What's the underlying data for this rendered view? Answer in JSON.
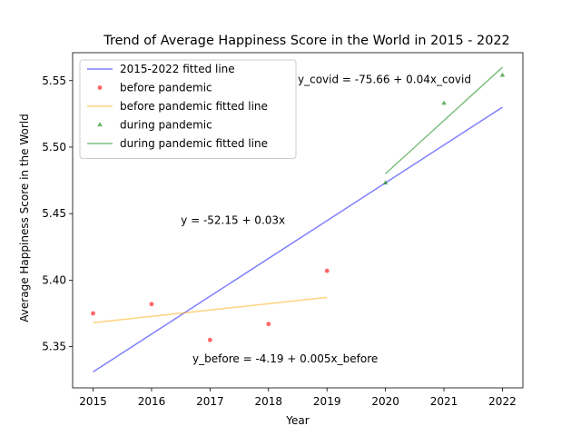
{
  "chart_data": {
    "type": "scatter",
    "title": "Trend of Average Happiness Score in the World in 2015 - 2022",
    "xlabel": "Year",
    "ylabel": "Average Happiness Score in the World",
    "xlim": [
      2014.65,
      2022.35
    ],
    "ylim": [
      5.319,
      5.571
    ],
    "xticks": [
      2015,
      2016,
      2017,
      2018,
      2019,
      2020,
      2021,
      2022
    ],
    "yticks": [
      5.35,
      5.4,
      5.45,
      5.5,
      5.55
    ],
    "ytick_labels": [
      "5.35",
      "5.40",
      "5.45",
      "5.50",
      "5.55"
    ],
    "grid": false,
    "legend_position": "upper-left",
    "series": [
      {
        "name": "2015-2022 fitted line",
        "kind": "line",
        "color": "#0000ff",
        "opacity": 0.5,
        "points": [
          [
            2015,
            5.331
          ],
          [
            2022,
            5.53
          ]
        ]
      },
      {
        "name": "before pandemic",
        "kind": "scatter",
        "marker": "circle",
        "color": "#ff0000",
        "opacity": 0.6,
        "points": [
          [
            2015,
            5.375
          ],
          [
            2016,
            5.382
          ],
          [
            2017,
            5.355
          ],
          [
            2018,
            5.367
          ],
          [
            2019,
            5.407
          ]
        ]
      },
      {
        "name": "before pandemic fitted line",
        "kind": "line",
        "color": "#ffa500",
        "opacity": 0.5,
        "points": [
          [
            2015,
            5.368
          ],
          [
            2019,
            5.387
          ]
        ]
      },
      {
        "name": "during pandemic",
        "kind": "scatter",
        "marker": "triangle",
        "color": "#008000",
        "opacity": 0.6,
        "points": [
          [
            2020,
            5.473
          ],
          [
            2021,
            5.533
          ],
          [
            2022,
            5.554
          ]
        ]
      },
      {
        "name": "during pandemic fitted line",
        "kind": "line",
        "color": "#008000",
        "opacity": 0.5,
        "points": [
          [
            2020,
            5.48
          ],
          [
            2022,
            5.56
          ]
        ]
      }
    ],
    "annotations": [
      {
        "text": "y_covid = -75.66 + 0.04x_covid",
        "x": 2018.5,
        "y": 5.551
      },
      {
        "text": "y = -52.15 + 0.03x",
        "x": 2016.5,
        "y": 5.445
      },
      {
        "text": "y_before = -4.19 + 0.005x_before",
        "x": 2016.7,
        "y": 5.341
      }
    ]
  }
}
